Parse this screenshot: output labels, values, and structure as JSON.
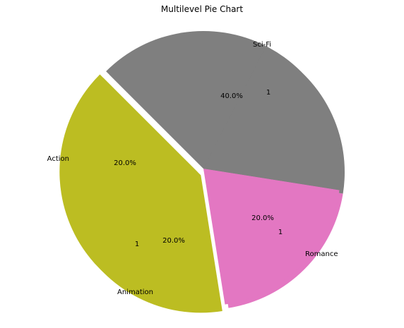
{
  "chart_data": {
    "type": "pie",
    "title": "Multilevel Pie Chart",
    "slices": [
      {
        "label": "Sci-Fi",
        "value": 40.0,
        "pct_label": "40.0%",
        "inner_label": "1",
        "color": "#bcbd22"
      },
      {
        "label": "Romance",
        "value": 20.0,
        "pct_label": "20.0%",
        "inner_label": "1",
        "color": "#e377c2"
      },
      {
        "label": "Animation",
        "value": 20.0,
        "pct_label": "20.0%",
        "inner_label": "1",
        "color": "#7f7f7f"
      },
      {
        "label": "Action",
        "value": 20.0,
        "pct_label": "20.0%",
        "inner_label": "",
        "color": "#7f7f7f"
      }
    ],
    "start_angle_deg": 135,
    "shadow": true,
    "explode": [
      0.05,
      0,
      0,
      0
    ],
    "legend": false,
    "grid": false
  }
}
